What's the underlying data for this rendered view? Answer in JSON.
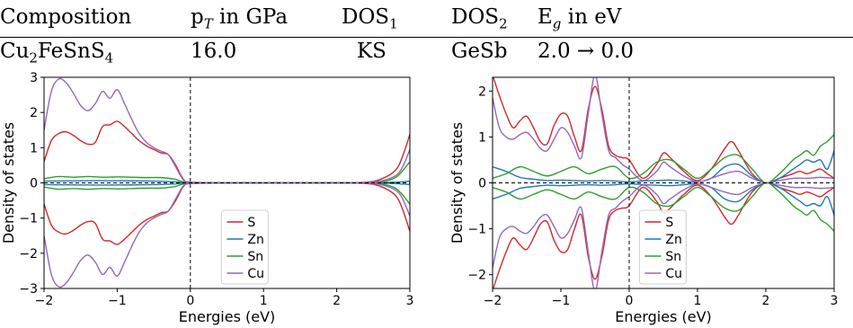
{
  "table": {
    "headers": {
      "composition": "Composition",
      "pt_base": "p",
      "pt_sub": "T",
      "pt_rest": " in GPa",
      "dos1_base": "DOS",
      "dos1_sub": "1",
      "dos2_base": "DOS",
      "dos2_sub": "2",
      "eg_base": "E",
      "eg_sub": "g",
      "eg_rest": " in eV"
    },
    "row": {
      "c1": "Cu",
      "c1s": "2",
      "c2": "FeSnS",
      "c2s": "4",
      "pt": "16.0",
      "dos1": "KS",
      "dos2": "GeSb",
      "eg": "2.0 → 0.0"
    }
  },
  "chart_data": [
    {
      "type": "line",
      "title": "",
      "xlabel": "Energies (eV)",
      "ylabel": "Density of states",
      "xlim": [
        -2,
        3
      ],
      "ylim": [
        -3,
        3
      ],
      "xticks": [
        -2,
        -1,
        0,
        1,
        2,
        3
      ],
      "yticks": [
        -3,
        -2,
        -1,
        0,
        1,
        2,
        3
      ],
      "xtick_labels": [
        "−2",
        "−1",
        "0",
        "1",
        "2",
        "3"
      ],
      "ytick_labels": [
        "−3",
        "−2",
        "−1",
        "0",
        "1",
        "2",
        "3"
      ],
      "vline_x": 0,
      "hline_y": 0,
      "legend_loc": "lower-center",
      "mirrored": true,
      "series": [
        {
          "name": "S",
          "color": "#d62728",
          "x": [
            -2,
            -1.9,
            -1.8,
            -1.7,
            -1.6,
            -1.5,
            -1.4,
            -1.3,
            -1.2,
            -1.1,
            -1.0,
            -0.9,
            -0.8,
            -0.7,
            -0.6,
            -0.5,
            -0.4,
            -0.3,
            -0.2,
            -0.1,
            0,
            0.5,
            1,
            1.5,
            2,
            2.4,
            2.6,
            2.8,
            2.9,
            3.0
          ],
          "y": [
            0.6,
            1.2,
            1.4,
            1.45,
            1.35,
            1.2,
            1.1,
            1.15,
            1.6,
            1.65,
            1.75,
            1.6,
            1.4,
            1.2,
            1.05,
            0.95,
            0.85,
            0.8,
            0.5,
            0.12,
            0.02,
            0,
            0,
            0,
            0,
            0.02,
            0.1,
            0.35,
            0.75,
            1.38
          ]
        },
        {
          "name": "Zn",
          "color": "#1f77b4",
          "x": [
            -2,
            -1.5,
            -1,
            -0.5,
            -0.2,
            0,
            1,
            2,
            2.5,
            2.8,
            3.0
          ],
          "y": [
            0.05,
            0.06,
            0.06,
            0.05,
            0.03,
            0,
            0,
            0,
            0,
            0.02,
            0.05
          ]
        },
        {
          "name": "Sn",
          "color": "#2ca02c",
          "x": [
            -2,
            -1.8,
            -1.6,
            -1.4,
            -1.2,
            -1,
            -0.8,
            -0.6,
            -0.4,
            -0.2,
            0,
            1,
            2,
            2.5,
            2.8,
            3.0
          ],
          "y": [
            0.12,
            0.18,
            0.16,
            0.18,
            0.16,
            0.17,
            0.16,
            0.15,
            0.15,
            0.1,
            0.02,
            0,
            0,
            0.01,
            0.15,
            0.6
          ]
        },
        {
          "name": "Cu",
          "color": "#9467bd",
          "x": [
            -2,
            -1.9,
            -1.8,
            -1.7,
            -1.6,
            -1.5,
            -1.4,
            -1.3,
            -1.2,
            -1.1,
            -1.0,
            -0.9,
            -0.8,
            -0.7,
            -0.6,
            -0.5,
            -0.4,
            -0.3,
            -0.2,
            -0.1,
            0,
            0.5,
            1,
            1.5,
            2,
            2.4,
            2.6,
            2.8,
            2.9,
            3.0
          ],
          "y": [
            1.5,
            2.6,
            2.95,
            2.85,
            2.55,
            2.2,
            2.05,
            2.25,
            2.6,
            2.4,
            2.65,
            2.25,
            1.8,
            1.4,
            1.15,
            1.0,
            0.9,
            0.8,
            0.45,
            0.1,
            0.02,
            0,
            0,
            0,
            0,
            0.01,
            0.05,
            0.2,
            0.45,
            0.95
          ]
        }
      ]
    },
    {
      "type": "line",
      "title": "",
      "xlabel": "Energies (eV)",
      "ylabel": "Density of states",
      "xlim": [
        -2,
        3
      ],
      "ylim": [
        -2.3,
        2.3
      ],
      "xticks": [
        -2,
        -1,
        0,
        1,
        2,
        3
      ],
      "yticks": [
        -2,
        -1,
        0,
        1,
        2
      ],
      "xtick_labels": [
        "−2",
        "−1",
        "0",
        "1",
        "2",
        "3"
      ],
      "ytick_labels": [
        "−2",
        "−1",
        "0",
        "1",
        "2"
      ],
      "vline_x": 0,
      "hline_y": 0,
      "legend_loc": "lower-center",
      "mirrored": true,
      "series": [
        {
          "name": "S",
          "color": "#d62728",
          "x": [
            -2,
            -1.9,
            -1.8,
            -1.7,
            -1.6,
            -1.5,
            -1.4,
            -1.3,
            -1.2,
            -1.1,
            -1.0,
            -0.9,
            -0.8,
            -0.7,
            -0.6,
            -0.5,
            -0.4,
            -0.3,
            -0.2,
            -0.1,
            0,
            0.2,
            0.4,
            0.5,
            0.6,
            0.8,
            1.0,
            1.2,
            1.4,
            1.5,
            1.6,
            1.8,
            2.0,
            2.2,
            2.4,
            2.5,
            2.6,
            2.7,
            2.8,
            2.9,
            3.0
          ],
          "y": [
            2.35,
            1.9,
            1.5,
            1.2,
            1.35,
            1.45,
            1.2,
            0.9,
            0.85,
            1.25,
            1.5,
            1.45,
            1.0,
            0.7,
            1.6,
            2.1,
            1.6,
            0.8,
            0.6,
            0.55,
            0.5,
            0.1,
            0.4,
            0.65,
            0.55,
            0.25,
            0.05,
            0.3,
            0.75,
            0.9,
            0.7,
            0.2,
            0,
            0.1,
            0.2,
            0.25,
            0.2,
            0.25,
            0.3,
            0.2,
            0.1
          ]
        },
        {
          "name": "Zn",
          "color": "#1f77b4",
          "x": [
            -2,
            -1.8,
            -1.6,
            -1.4,
            -1.2,
            -1,
            -0.8,
            -0.6,
            -0.4,
            -0.2,
            0,
            0.2,
            0.4,
            0.6,
            0.8,
            1.0,
            1.2,
            1.4,
            1.6,
            1.8,
            2.0,
            2.2,
            2.4,
            2.5,
            2.6,
            2.7,
            2.8,
            2.9,
            3.0
          ],
          "y": [
            0.35,
            0.25,
            0.12,
            0.08,
            0.05,
            0.06,
            0.05,
            0.04,
            0.05,
            0.04,
            0.02,
            0.04,
            0.05,
            0.06,
            0.04,
            0.02,
            0.1,
            0.35,
            0.4,
            0.15,
            0,
            0.1,
            0.3,
            0.4,
            0.5,
            0.45,
            0.5,
            0.3,
            0.7
          ]
        },
        {
          "name": "Sn",
          "color": "#2ca02c",
          "x": [
            -2,
            -1.8,
            -1.6,
            -1.4,
            -1.2,
            -1,
            -0.8,
            -0.6,
            -0.4,
            -0.2,
            0,
            0.2,
            0.4,
            0.6,
            0.8,
            1.0,
            1.2,
            1.4,
            1.6,
            1.8,
            2.0,
            2.2,
            2.4,
            2.5,
            2.6,
            2.7,
            2.8,
            2.9,
            3.0
          ],
          "y": [
            0.1,
            0.2,
            0.35,
            0.25,
            0.15,
            0.25,
            0.35,
            0.2,
            0.3,
            0.35,
            0.1,
            0.2,
            0.45,
            0.5,
            0.3,
            0.1,
            0.3,
            0.55,
            0.6,
            0.3,
            0,
            0.2,
            0.5,
            0.6,
            0.7,
            0.6,
            0.8,
            0.9,
            1.05
          ]
        },
        {
          "name": "Cu",
          "color": "#9467bd",
          "x": [
            -2,
            -1.9,
            -1.8,
            -1.7,
            -1.6,
            -1.5,
            -1.4,
            -1.3,
            -1.2,
            -1.1,
            -1.0,
            -0.9,
            -0.8,
            -0.7,
            -0.6,
            -0.5,
            -0.4,
            -0.3,
            -0.2,
            -0.1,
            0,
            0.2,
            0.4,
            0.5,
            0.6,
            0.8,
            1.0,
            1.2,
            1.4,
            1.6,
            1.8,
            2.0,
            2.2,
            2.4,
            2.6,
            2.8,
            3.0
          ],
          "y": [
            1.85,
            1.2,
            1.0,
            0.95,
            1.05,
            1.1,
            0.95,
            0.75,
            0.7,
            0.95,
            1.2,
            1.1,
            0.8,
            0.55,
            1.5,
            2.35,
            1.5,
            0.7,
            0.55,
            0.4,
            0.3,
            0.05,
            0.25,
            0.45,
            0.35,
            0.15,
            0.02,
            0.1,
            0.2,
            0.25,
            0.1,
            0,
            0.05,
            0.1,
            0.1,
            0.12,
            0.1
          ]
        }
      ]
    }
  ]
}
